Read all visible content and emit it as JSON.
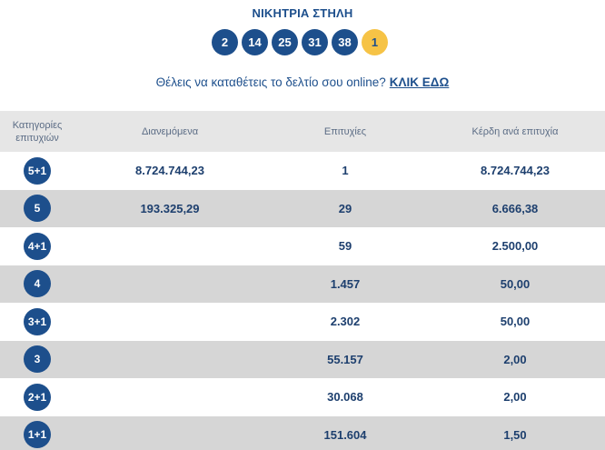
{
  "header": {
    "title": "ΝΙΚΗΤΡΙΑ ΣΤΗΛΗ",
    "numbers": [
      "2",
      "14",
      "25",
      "31",
      "38"
    ],
    "joker": "1"
  },
  "promo": {
    "text": "Θέλεις να καταθέτεις το δελτίο σου online?",
    "link": "ΚΛΙΚ ΕΔΩ"
  },
  "table": {
    "headers": {
      "category": "Κατηγορίες επιτυχιών",
      "distributed": "Διανεμόμενα",
      "winners": "Επιτυχίες",
      "prize": "Κέρδη ανά επιτυχία"
    },
    "rows": [
      {
        "category": "5+1",
        "distributed": "8.724.744,23",
        "winners": "1",
        "prize": "8.724.744,23"
      },
      {
        "category": "5",
        "distributed": "193.325,29",
        "winners": "29",
        "prize": "6.666,38"
      },
      {
        "category": "4+1",
        "distributed": "",
        "winners": "59",
        "prize": "2.500,00"
      },
      {
        "category": "4",
        "distributed": "",
        "winners": "1.457",
        "prize": "50,00"
      },
      {
        "category": "3+1",
        "distributed": "",
        "winners": "2.302",
        "prize": "50,00"
      },
      {
        "category": "3",
        "distributed": "",
        "winners": "55.157",
        "prize": "2,00"
      },
      {
        "category": "2+1",
        "distributed": "",
        "winners": "30.068",
        "prize": "2,00"
      },
      {
        "category": "1+1",
        "distributed": "",
        "winners": "151.604",
        "prize": "1,50"
      }
    ]
  }
}
